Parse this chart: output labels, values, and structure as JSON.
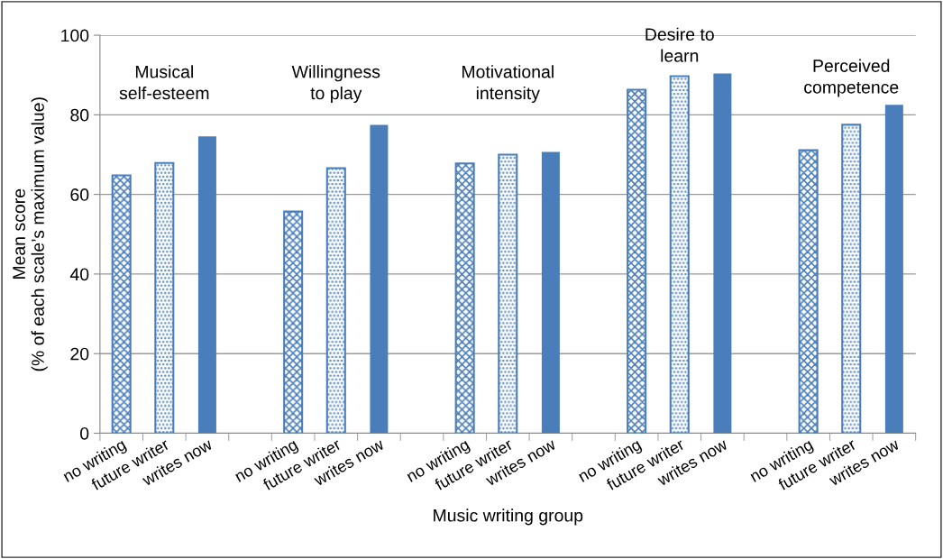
{
  "chart_data": {
    "type": "bar",
    "xlabel": "Music writing group",
    "ylabel": "Mean score\n(% of each scale’s maximum value)",
    "categories": [
      "no writing",
      "future writer",
      "writes now",
      null,
      "no writing",
      "future writer",
      "writes now",
      null,
      "no writing",
      "future writer",
      "writes now",
      null,
      "no writing",
      "future writer",
      "writes now",
      null,
      "no writing",
      "future writer",
      "writes now"
    ],
    "series": [
      {
        "color": "#4a7ebb",
        "values": [
          64.8,
          null,
          null,
          null,
          55.7,
          null,
          null,
          null,
          67.8,
          null,
          null,
          null,
          86.3,
          null,
          null,
          null,
          71.1,
          null,
          null
        ]
      },
      {
        "color": "#4a7ebb",
        "values": [
          null,
          67.9,
          null,
          null,
          null,
          66.6,
          null,
          null,
          null,
          70.0,
          null,
          null,
          null,
          89.7,
          null,
          null,
          null,
          77.5,
          null
        ]
      },
      {
        "color": "#4a7ebb",
        "values": [
          null,
          null,
          74.6,
          null,
          null,
          null,
          77.5,
          null,
          null,
          null,
          70.7,
          null,
          null,
          null,
          90.4,
          null,
          null,
          null,
          82.5
        ]
      }
    ],
    "annotations": [
      "Musical\nself-esteem",
      "Willingness\nto play",
      "Motivational\nintensity",
      "Desire to\nlearn",
      "Perceived\ncompetence"
    ],
    "ylim": [
      0,
      100
    ],
    "yticks": [
      0,
      20,
      40,
      60,
      80,
      100
    ],
    "grid": "y"
  }
}
